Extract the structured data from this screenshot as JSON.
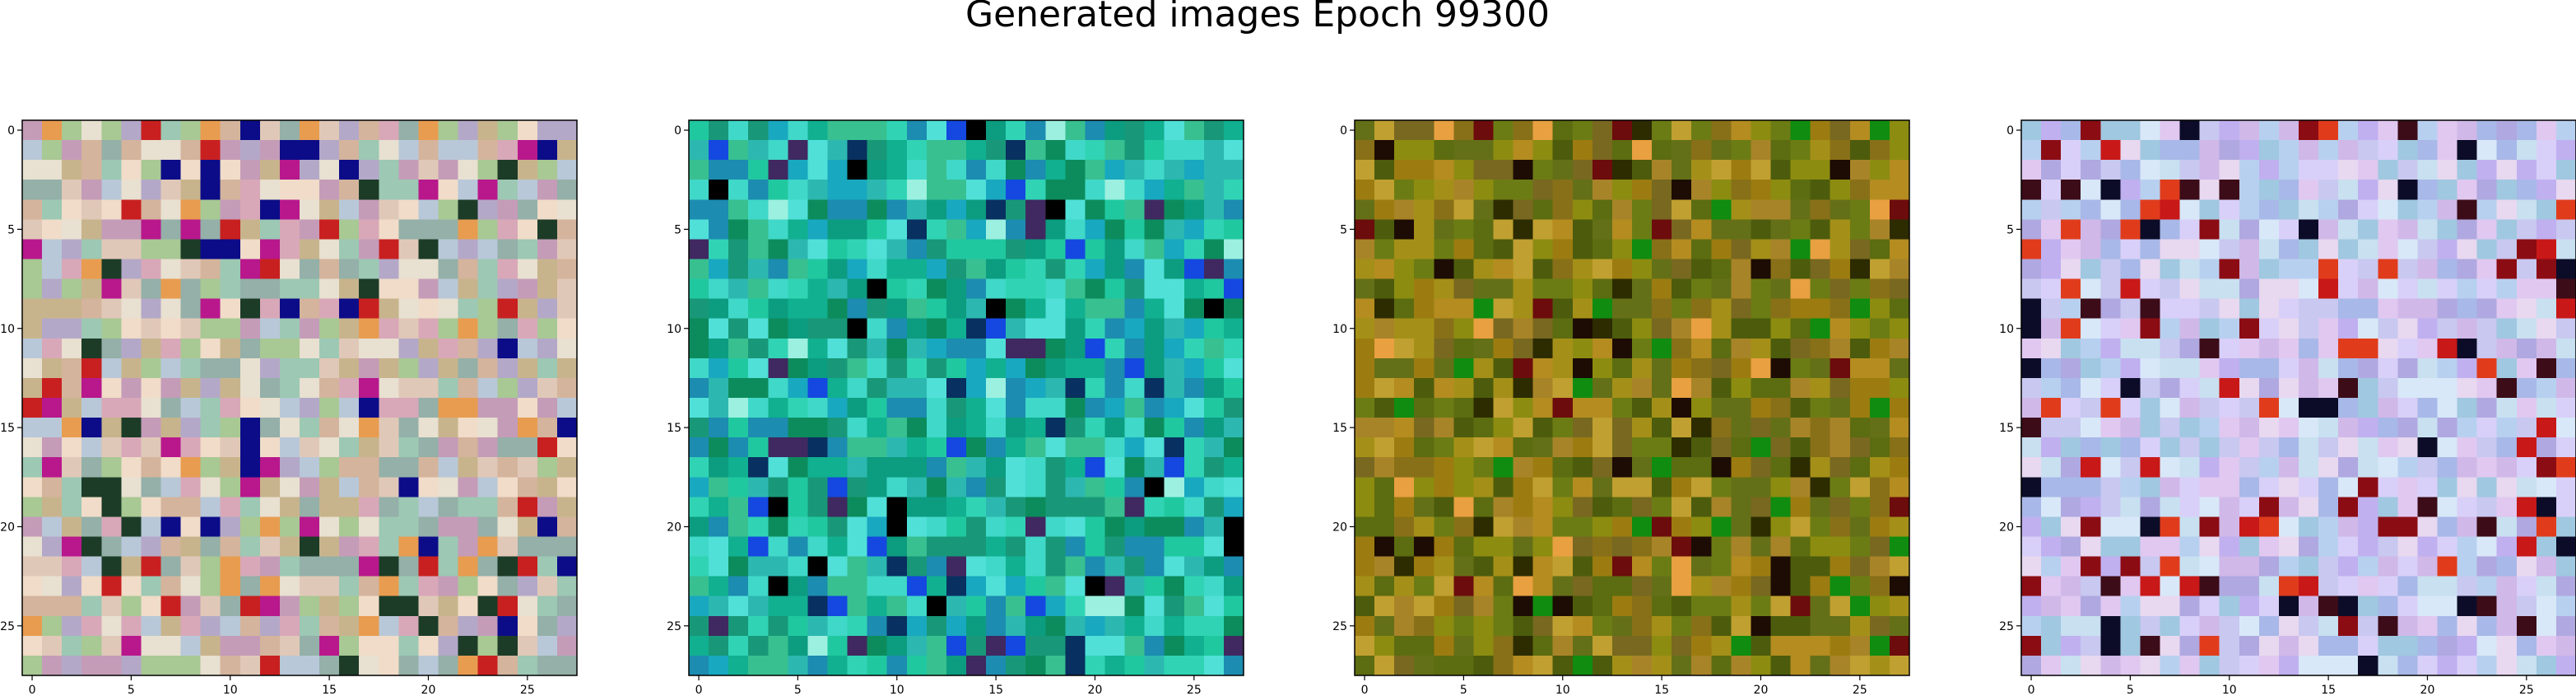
{
  "figure": {
    "title": "Generated images Epoch 99300"
  },
  "chart_data": [
    {
      "type": "heatmap",
      "title": "",
      "xlabel": "",
      "ylabel": "",
      "grid_size": 28,
      "x_ticks": [
        0,
        5,
        10,
        15,
        20,
        25
      ],
      "y_ticks": [
        0,
        5,
        10,
        15,
        20,
        25
      ],
      "xlim": [
        -0.5,
        27.5
      ],
      "ylim": [
        27.5,
        -0.5
      ],
      "grid": false,
      "color_palette": [
        "#c8b48c",
        "#a8c894",
        "#e0c8b8",
        "#b4a8c8",
        "#9cc8b4",
        "#d8a8b8",
        "#f0dcc8",
        "#94b0a8",
        "#c49cb8",
        "#e8e0d0",
        "#b8c8d8",
        "#d4b49c"
      ],
      "accent_colors": [
        "#b8188c",
        "#0c0c88",
        "#c82020",
        "#1c3c28",
        "#e89c50"
      ],
      "palette_weight": 0.85
    },
    {
      "type": "heatmap",
      "title": "",
      "xlabel": "",
      "ylabel": "",
      "grid_size": 28,
      "x_ticks": [
        0,
        5,
        10,
        15,
        20,
        25
      ],
      "y_ticks": [
        0,
        5,
        10,
        15,
        20,
        25
      ],
      "xlim": [
        -0.5,
        27.5
      ],
      "ylim": [
        27.5,
        -0.5
      ],
      "grid": false,
      "color_palette": [
        "#10b090",
        "#20c8a0",
        "#0c9c80",
        "#30d4b4",
        "#18a8c0",
        "#40d8c8",
        "#0c8c5c",
        "#2cb8b0",
        "#50e0d8",
        "#189878",
        "#1c8cb0",
        "#38c090"
      ],
      "accent_colors": [
        "#083060",
        "#000000",
        "#1448e0",
        "#402860",
        "#9cf0e0"
      ],
      "palette_weight": 0.85
    },
    {
      "type": "heatmap",
      "title": "",
      "xlabel": "",
      "ylabel": "",
      "grid_size": 28,
      "x_ticks": [
        0,
        5,
        10,
        15,
        20,
        25
      ],
      "y_ticks": [
        0,
        5,
        10,
        15,
        20,
        25
      ],
      "xlim": [
        -0.5,
        27.5
      ],
      "ylim": [
        27.5,
        -0.5
      ],
      "grid": false,
      "color_palette": [
        "#8c8c10",
        "#6c7c14",
        "#a49018",
        "#5c6c10",
        "#b48c20",
        "#786820",
        "#4c5c0c",
        "#c0a030",
        "#887018",
        "#9c7c10",
        "#647018",
        "#a88428"
      ],
      "accent_colors": [
        "#1c0c04",
        "#e8a040",
        "#6c0c0c",
        "#108c10",
        "#2c2c00"
      ],
      "palette_weight": 0.85
    },
    {
      "type": "heatmap",
      "title": "",
      "xlabel": "",
      "ylabel": "",
      "grid_size": 28,
      "x_ticks": [
        0,
        5,
        10,
        15,
        20,
        25
      ],
      "y_ticks": [
        0,
        5,
        10,
        15,
        20,
        25
      ],
      "xlim": [
        -0.5,
        27.5
      ],
      "ylim": [
        27.5,
        -0.5
      ],
      "grid": false,
      "color_palette": [
        "#c8c8f0",
        "#d0b8e8",
        "#b8d0f0",
        "#e0c8f0",
        "#a8b8e8",
        "#c8e0f0",
        "#d8d0f8",
        "#b0a8e0",
        "#e8d8f0",
        "#a0c8e0",
        "#c0b0f0",
        "#d8e8f8"
      ],
      "accent_colors": [
        "#8c0c14",
        "#c81818",
        "#e03c1c",
        "#3c0c18",
        "#0c0c28"
      ],
      "palette_weight": 0.85
    }
  ]
}
